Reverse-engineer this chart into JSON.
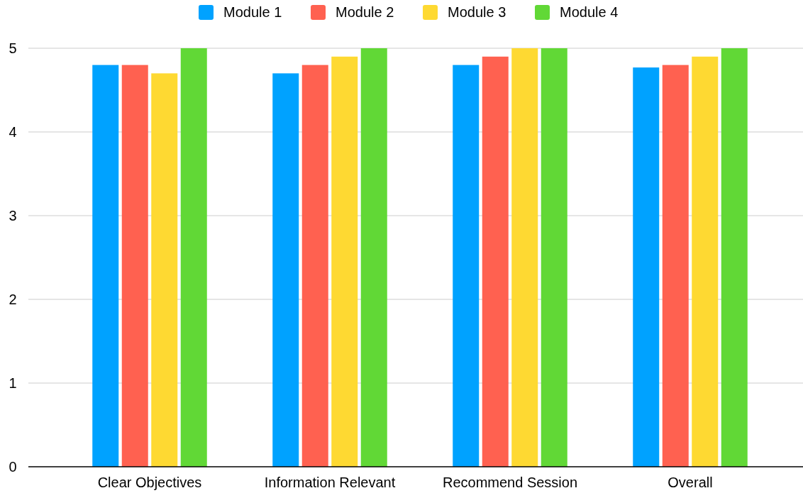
{
  "chart_data": {
    "type": "bar",
    "categories": [
      "Clear Objectives",
      "Information Relevant",
      "Recommend Session",
      "Overall"
    ],
    "series": [
      {
        "name": "Module 1",
        "color": "#00a2ff",
        "values": [
          4.8,
          4.7,
          4.8,
          4.77
        ]
      },
      {
        "name": "Module 2",
        "color": "#ff6150",
        "values": [
          4.8,
          4.8,
          4.9,
          4.8
        ]
      },
      {
        "name": "Module 3",
        "color": "#fed932",
        "values": [
          4.7,
          4.9,
          5,
          4.9
        ]
      },
      {
        "name": "Module 4",
        "color": "#61d836",
        "values": [
          5,
          5,
          5,
          5
        ]
      }
    ],
    "ylim": [
      0,
      5
    ],
    "yticks": [
      0,
      1,
      2,
      3,
      4,
      5
    ],
    "grid": "y",
    "legend": "top"
  }
}
